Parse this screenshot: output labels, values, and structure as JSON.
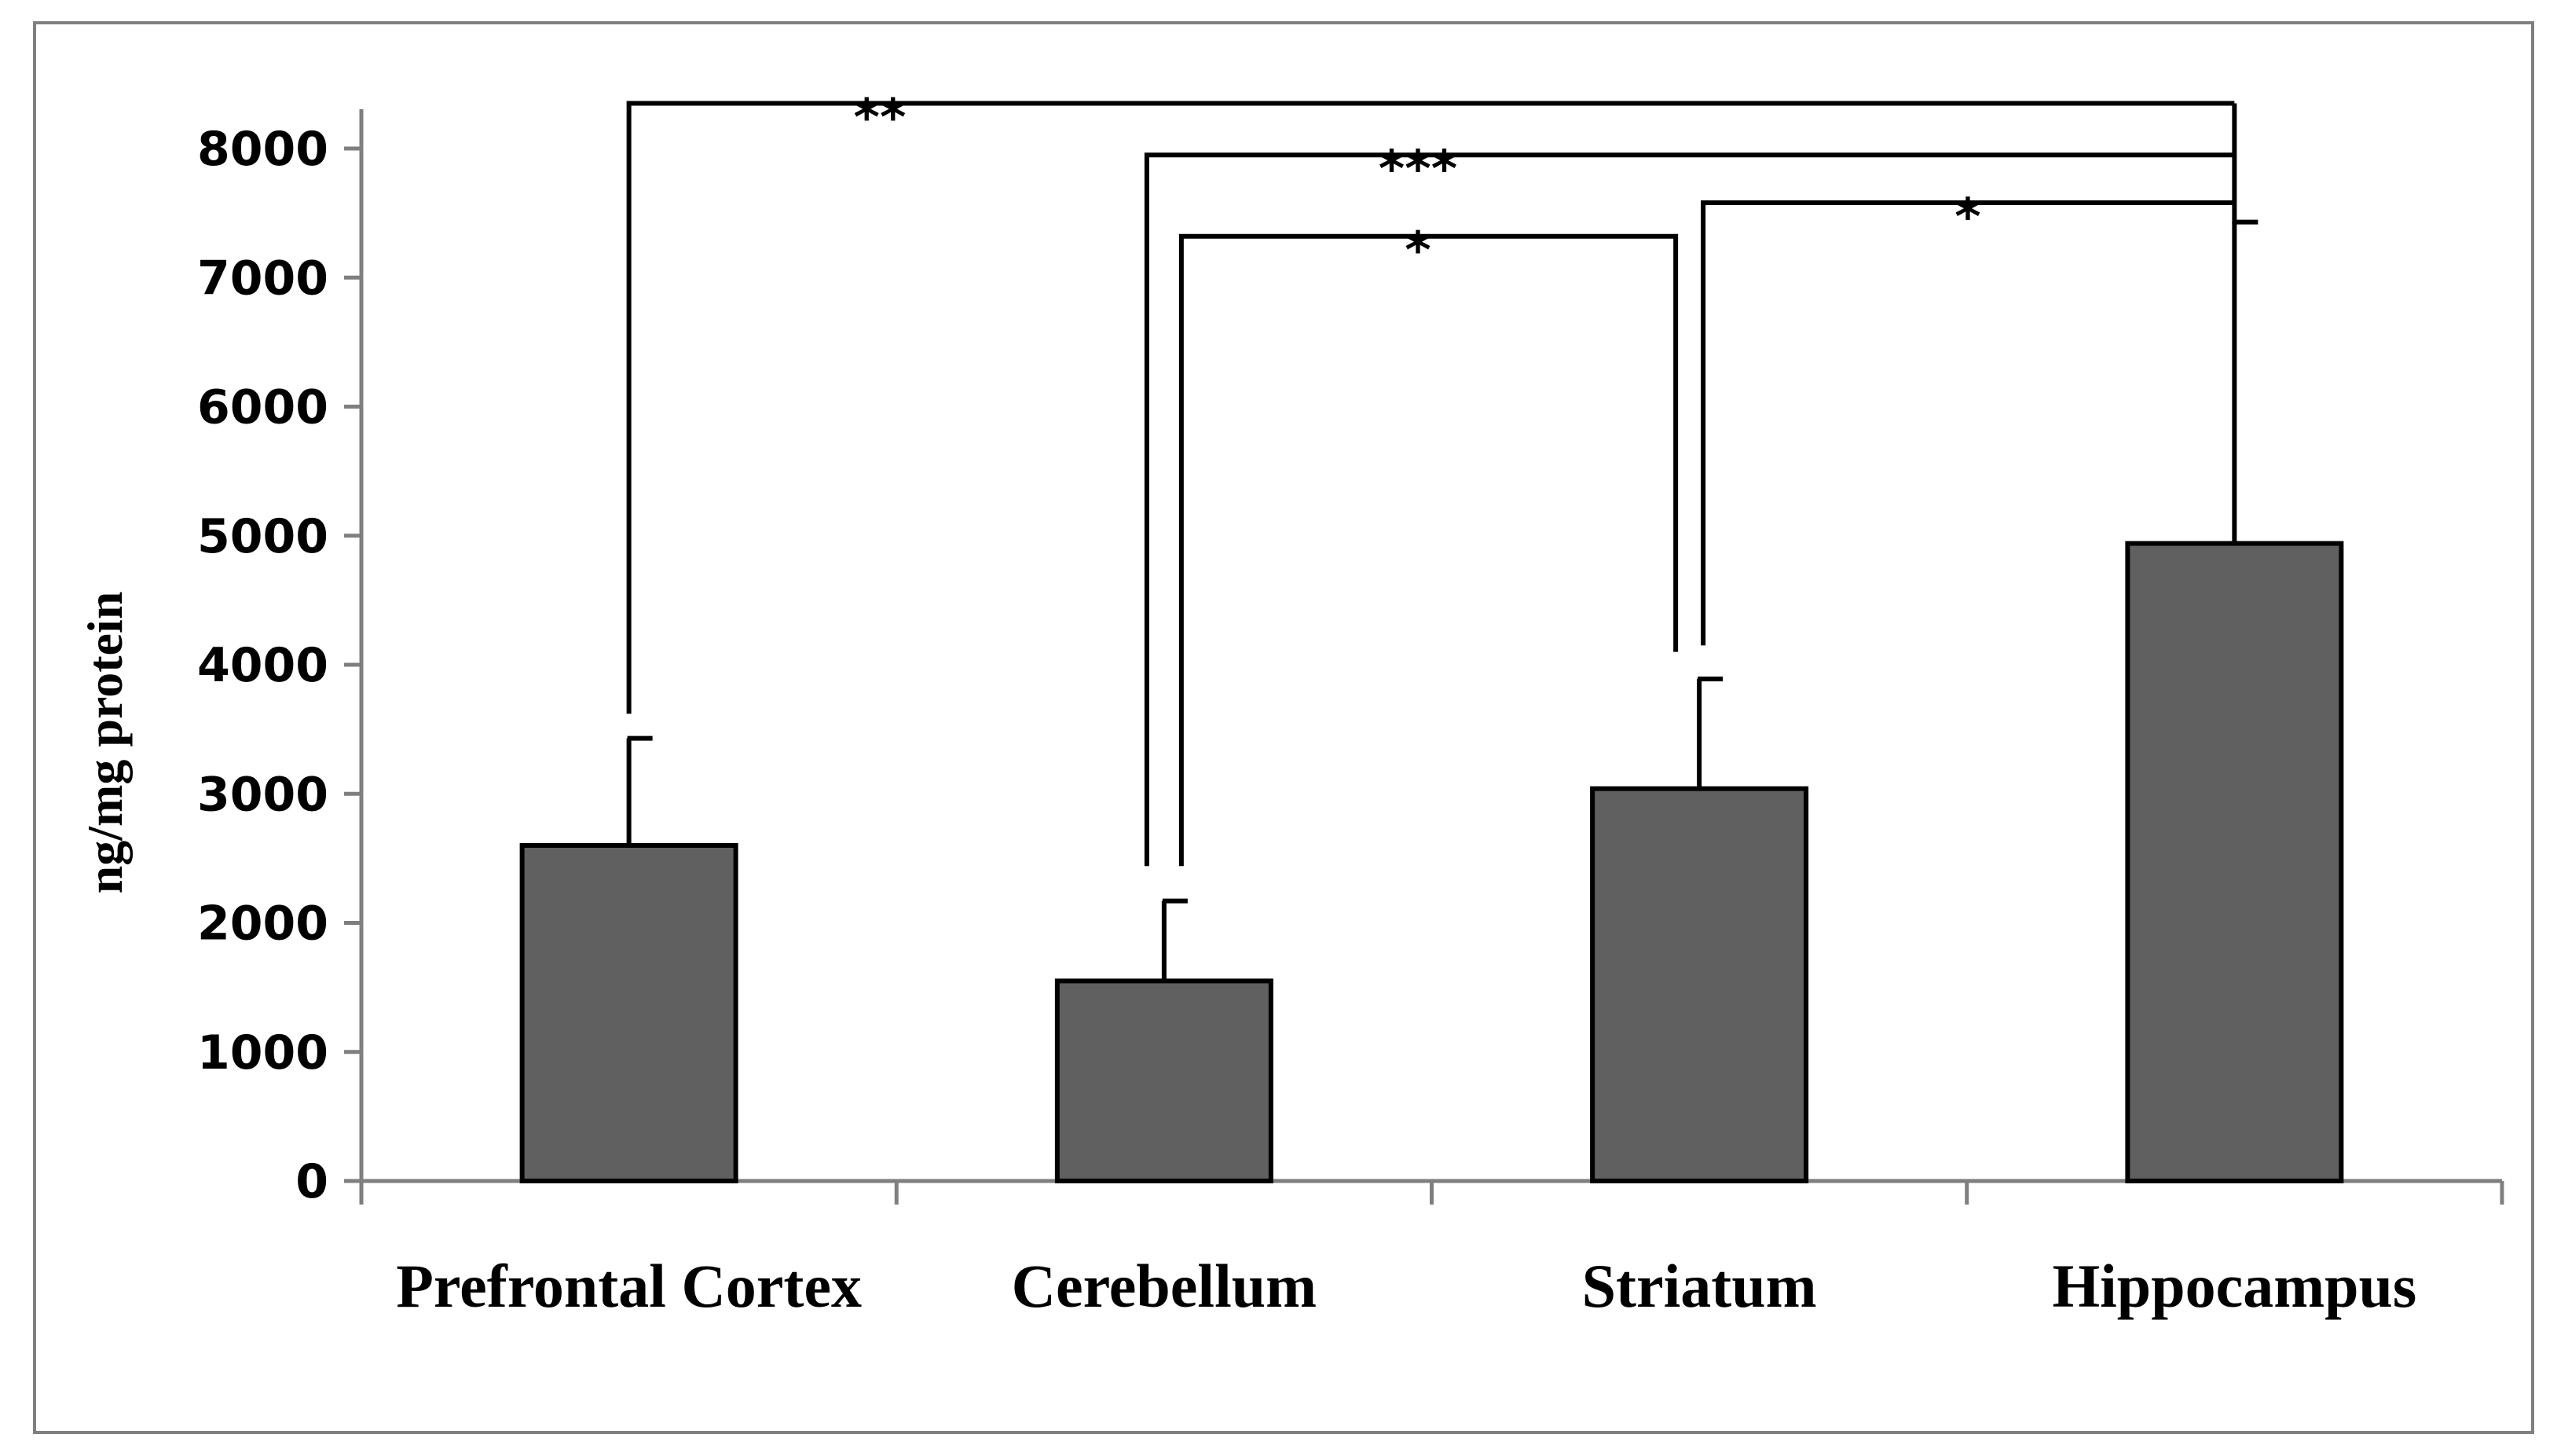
{
  "chart_data": {
    "type": "bar",
    "title": "",
    "xlabel": "",
    "ylabel": "ng/mg protein",
    "ylim": [
      0,
      8000
    ],
    "yticks": [
      0,
      1000,
      2000,
      3000,
      4000,
      5000,
      6000,
      7000,
      8000
    ],
    "grid": false,
    "categories": [
      "Prefrontal Cortex",
      "Cerebellum",
      "Striatum",
      "Hippocampus"
    ],
    "values": [
      2600,
      1550,
      3040,
      4940
    ],
    "error_upper": [
      3430,
      2170,
      3890,
      7430
    ],
    "bar_color": "#606060",
    "significance": [
      {
        "from": "Prefrontal Cortex",
        "to": "Hippocampus",
        "label": "**",
        "level": 8350
      },
      {
        "from": "Cerebellum",
        "to": "Hippocampus",
        "label": "***",
        "level": 7950
      },
      {
        "from": "Cerebellum",
        "to": "Striatum",
        "label": "*",
        "level": 7320
      },
      {
        "from": "Striatum",
        "to": "Hippocampus",
        "label": "*",
        "level": 7580
      }
    ]
  }
}
